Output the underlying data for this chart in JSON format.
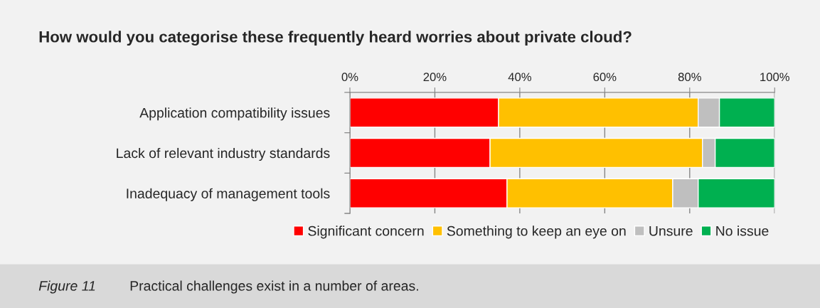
{
  "chart_data": {
    "type": "bar",
    "orientation": "horizontal",
    "stacked": true,
    "title": "How would you categorise these frequently heard worries about private cloud?",
    "categories": [
      "Application compatibility issues",
      "Lack of relevant industry standards",
      "Inadequacy of management tools"
    ],
    "series": [
      {
        "name": "Significant concern",
        "color": "#ff0000",
        "values": [
          35,
          33,
          37
        ]
      },
      {
        "name": "Something to keep an eye on",
        "color": "#ffc000",
        "values": [
          47,
          50,
          39
        ]
      },
      {
        "name": "Unsure",
        "color": "#bfbfbf",
        "values": [
          5,
          3,
          6
        ]
      },
      {
        "name": "No issue",
        "color": "#00b050",
        "values": [
          13,
          14,
          18
        ]
      }
    ],
    "xlim": [
      0,
      100
    ],
    "xticks": [
      {
        "value": 0,
        "label": "0%"
      },
      {
        "value": 20,
        "label": "20%"
      },
      {
        "value": 40,
        "label": "40%"
      },
      {
        "value": 60,
        "label": "60%"
      },
      {
        "value": 80,
        "label": "80%"
      },
      {
        "value": 100,
        "label": "100%"
      }
    ],
    "grid": "x",
    "legend": "bottom",
    "annotations": [
      "Figure 11",
      "Practical challenges exist in a number of areas."
    ]
  }
}
